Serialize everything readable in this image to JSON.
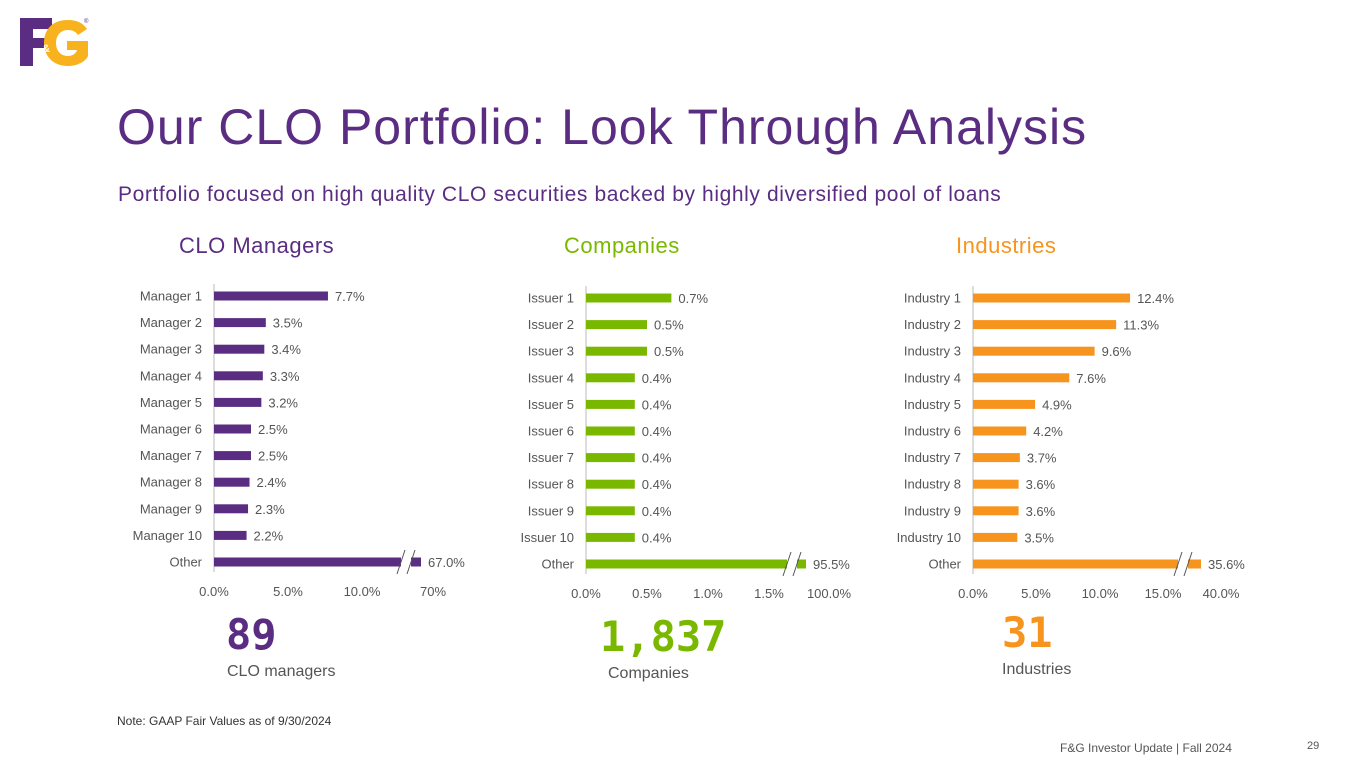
{
  "brand": {
    "logo_text": "F&G",
    "purple": "#5a2d82",
    "green": "#7ab800",
    "orange": "#f7941d"
  },
  "header": {
    "title": "Our CLO Portfolio: Look Through Analysis",
    "subtitle": "Portfolio focused on high quality CLO securities backed by highly diversified pool of loans"
  },
  "chart_data": [
    {
      "type": "bar",
      "orientation": "horizontal",
      "title": "CLO Managers",
      "color": "#5a2d82",
      "categories": [
        "Manager 1",
        "Manager 2",
        "Manager 3",
        "Manager 4",
        "Manager 5",
        "Manager 6",
        "Manager 7",
        "Manager 8",
        "Manager 9",
        "Manager 10",
        "Other"
      ],
      "values": [
        7.7,
        3.5,
        3.4,
        3.3,
        3.2,
        2.5,
        2.5,
        2.4,
        2.3,
        2.2,
        67.0
      ],
      "value_labels": [
        "7.7%",
        "3.5%",
        "3.4%",
        "3.3%",
        "3.2%",
        "2.5%",
        "2.5%",
        "2.4%",
        "2.3%",
        "2.2%",
        "67.0%"
      ],
      "xticks": [
        "0.0%",
        "5.0%",
        "10.0%",
        "70%"
      ],
      "axis_break": true,
      "xlim": [
        0,
        10
      ]
    },
    {
      "type": "bar",
      "orientation": "horizontal",
      "title": "Companies",
      "color": "#7ab800",
      "categories": [
        "Issuer 1",
        "Issuer 2",
        "Issuer 3",
        "Issuer 4",
        "Issuer 5",
        "Issuer 6",
        "Issuer 7",
        "Issuer 8",
        "Issuer 9",
        "Issuer 10",
        "Other"
      ],
      "values": [
        0.7,
        0.5,
        0.5,
        0.4,
        0.4,
        0.4,
        0.4,
        0.4,
        0.4,
        0.4,
        95.5
      ],
      "value_labels": [
        "0.7%",
        "0.5%",
        "0.5%",
        "0.4%",
        "0.4%",
        "0.4%",
        "0.4%",
        "0.4%",
        "0.4%",
        "0.4%",
        "95.5%"
      ],
      "xticks": [
        "0.0%",
        "0.5%",
        "1.0%",
        "1.5%",
        "100.0%"
      ],
      "axis_break": true,
      "xlim": [
        0,
        1.5
      ]
    },
    {
      "type": "bar",
      "orientation": "horizontal",
      "title": "Industries",
      "color": "#f7941d",
      "categories": [
        "Industry 1",
        "Industry 2",
        "Industry 3",
        "Industry 4",
        "Industry 5",
        "Industry 6",
        "Industry 7",
        "Industry 8",
        "Industry 9",
        "Industry 10",
        "Other"
      ],
      "values": [
        12.4,
        11.3,
        9.6,
        7.6,
        4.9,
        4.2,
        3.7,
        3.6,
        3.6,
        3.5,
        35.6
      ],
      "value_labels": [
        "12.4%",
        "11.3%",
        "9.6%",
        "7.6%",
        "4.9%",
        "4.2%",
        "3.7%",
        "3.6%",
        "3.6%",
        "3.5%",
        "35.6%"
      ],
      "xticks": [
        "0.0%",
        "5.0%",
        "10.0%",
        "15.0%",
        "40.0%"
      ],
      "axis_break": true,
      "xlim": [
        0,
        15
      ]
    }
  ],
  "stats": [
    {
      "value": "89",
      "label": "CLO managers"
    },
    {
      "value": "1,837",
      "label": "Companies"
    },
    {
      "value": "31",
      "label": "Industries"
    }
  ],
  "note": "Note: GAAP Fair Values as of 9/30/2024",
  "footer": {
    "text": "F&G Investor Update | Fall 2024",
    "page": "29"
  }
}
